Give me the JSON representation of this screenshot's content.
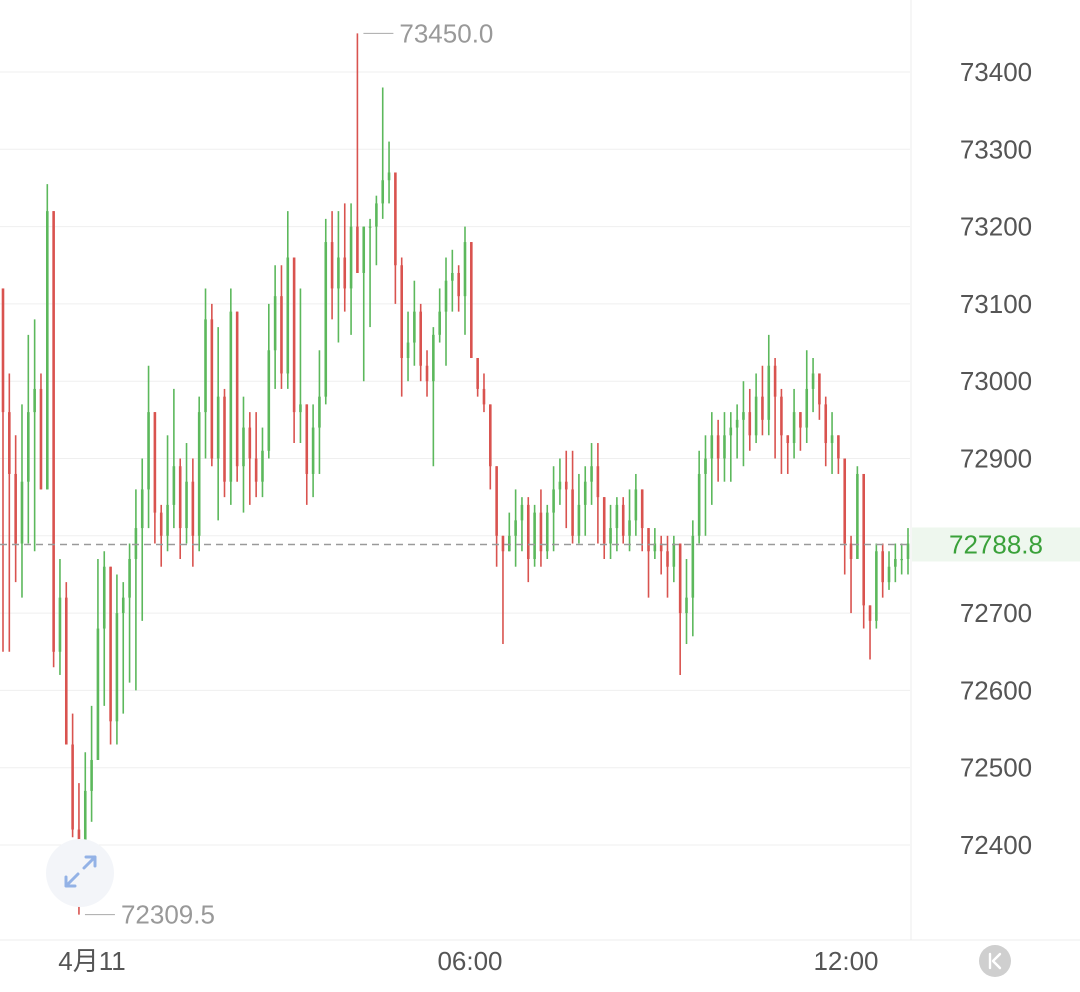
{
  "chart_data": {
    "type": "candlestick",
    "colors": {
      "up": "#5cb85c",
      "down": "#d9534f",
      "last_price": "#3aa13a"
    },
    "grid": true,
    "ylim": [
      72300,
      73480
    ],
    "y_ticks": [
      "73400",
      "73300",
      "73200",
      "73100",
      "73000",
      "72900",
      "72700",
      "72600",
      "72500",
      "72400"
    ],
    "x_ticks": [
      "4月11",
      "06:00",
      "12:00"
    ],
    "high_label": "73450.0",
    "low_label": "72309.5",
    "last_price": 72788.8,
    "last_price_label": "72788.8",
    "candles": [
      [
        73120,
        73120,
        72650,
        72960
      ],
      [
        72960,
        73010,
        72650,
        72880
      ],
      [
        72880,
        72930,
        72740,
        72790
      ],
      [
        72790,
        72970,
        72720,
        72870
      ],
      [
        72870,
        73060,
        72790,
        72960
      ],
      [
        72960,
        73080,
        72780,
        72990
      ],
      [
        72990,
        73010,
        72860,
        72860
      ],
      [
        72860,
        73255,
        72860,
        73220
      ],
      [
        73220,
        73220,
        72630,
        72650
      ],
      [
        72650,
        72770,
        72620,
        72720
      ],
      [
        72720,
        72740,
        72530,
        72530
      ],
      [
        72530,
        72570,
        72410,
        72420
      ],
      [
        72420,
        72480,
        72310,
        72340
      ],
      [
        72340,
        72520,
        72350,
        72470
      ],
      [
        72470,
        72580,
        72430,
        72510
      ],
      [
        72510,
        72770,
        72510,
        72680
      ],
      [
        72680,
        72780,
        72580,
        72760
      ],
      [
        72760,
        72760,
        72530,
        72560
      ],
      [
        72560,
        72750,
        72530,
        72700
      ],
      [
        72700,
        72740,
        72570,
        72720
      ],
      [
        72720,
        72790,
        72610,
        72770
      ],
      [
        72770,
        72860,
        72600,
        72810
      ],
      [
        72810,
        72900,
        72690,
        72860
      ],
      [
        72860,
        73020,
        72810,
        72960
      ],
      [
        72960,
        72960,
        72790,
        72830
      ],
      [
        72830,
        72840,
        72760,
        72800
      ],
      [
        72800,
        72930,
        72780,
        72840
      ],
      [
        72840,
        72990,
        72810,
        72890
      ],
      [
        72890,
        72900,
        72770,
        72810
      ],
      [
        72810,
        72920,
        72790,
        72870
      ],
      [
        72870,
        72900,
        72760,
        72800
      ],
      [
        72800,
        72980,
        72780,
        72960
      ],
      [
        72960,
        73120,
        72900,
        73080
      ],
      [
        73080,
        73100,
        72890,
        72900
      ],
      [
        72900,
        73070,
        72820,
        72980
      ],
      [
        72980,
        72990,
        72850,
        72870
      ],
      [
        72870,
        73120,
        72840,
        73090
      ],
      [
        73090,
        73090,
        72870,
        72890
      ],
      [
        72890,
        72980,
        72830,
        72940
      ],
      [
        72940,
        72960,
        72840,
        72900
      ],
      [
        72900,
        72960,
        72850,
        72870
      ],
      [
        72870,
        72940,
        72850,
        72910
      ],
      [
        72910,
        73100,
        72900,
        73040
      ],
      [
        73040,
        73150,
        72990,
        73110
      ],
      [
        73110,
        73150,
        72990,
        73010
      ],
      [
        73010,
        73220,
        72990,
        73160
      ],
      [
        73160,
        73160,
        72920,
        72960
      ],
      [
        72960,
        73120,
        72920,
        72970
      ],
      [
        72970,
        72970,
        72840,
        72880
      ],
      [
        72880,
        72970,
        72850,
        72940
      ],
      [
        72940,
        73040,
        72880,
        72980
      ],
      [
        72980,
        73210,
        72970,
        73180
      ],
      [
        73180,
        73220,
        73080,
        73120
      ],
      [
        73120,
        73220,
        73050,
        73160
      ],
      [
        73160,
        73230,
        73090,
        73120
      ],
      [
        73120,
        73230,
        73060,
        73200
      ],
      [
        73200,
        73450,
        73140,
        73140
      ],
      [
        73140,
        73200,
        73000,
        73200
      ],
      [
        73200,
        73210,
        73070,
        73200
      ],
      [
        73200,
        73240,
        73150,
        73230
      ],
      [
        73230,
        73380,
        73210,
        73260
      ],
      [
        73260,
        73310,
        73230,
        73270
      ],
      [
        73270,
        73270,
        73100,
        73150
      ],
      [
        73150,
        73160,
        72980,
        73030
      ],
      [
        73030,
        73090,
        73000,
        73050
      ],
      [
        73050,
        73130,
        73020,
        73090
      ],
      [
        73090,
        73100,
        73000,
        73020
      ],
      [
        73020,
        73040,
        72980,
        73000
      ],
      [
        73000,
        73070,
        72890,
        73060
      ],
      [
        73060,
        73120,
        73050,
        73090
      ],
      [
        73090,
        73160,
        73020,
        73130
      ],
      [
        73130,
        73170,
        73090,
        73140
      ],
      [
        73140,
        73150,
        73090,
        73110
      ],
      [
        73110,
        73200,
        73060,
        73180
      ],
      [
        73180,
        73180,
        73030,
        73030
      ],
      [
        73030,
        73030,
        72980,
        72990
      ],
      [
        72990,
        73010,
        72960,
        72970
      ],
      [
        72970,
        72970,
        72860,
        72890
      ],
      [
        72890,
        72890,
        72760,
        72800
      ],
      [
        72800,
        72800,
        72660,
        72780
      ],
      [
        72780,
        72830,
        72780,
        72800
      ],
      [
        72800,
        72860,
        72760,
        72820
      ],
      [
        72820,
        72850,
        72780,
        72840
      ],
      [
        72840,
        72850,
        72740,
        72770
      ],
      [
        72770,
        72840,
        72760,
        72830
      ],
      [
        72830,
        72860,
        72760,
        72780
      ],
      [
        72780,
        72840,
        72770,
        72830
      ],
      [
        72830,
        72890,
        72780,
        72860
      ],
      [
        72860,
        72900,
        72840,
        72870
      ],
      [
        72870,
        72910,
        72810,
        72860
      ],
      [
        72860,
        72910,
        72790,
        72800
      ],
      [
        72800,
        72880,
        72790,
        72840
      ],
      [
        72840,
        72890,
        72800,
        72870
      ],
      [
        72870,
        72920,
        72840,
        72890
      ],
      [
        72890,
        72920,
        72790,
        72850
      ],
      [
        72850,
        72850,
        72770,
        72790
      ],
      [
        72790,
        72840,
        72770,
        72810
      ],
      [
        72810,
        72850,
        72780,
        72840
      ],
      [
        72840,
        72850,
        72790,
        72800
      ],
      [
        72800,
        72860,
        72780,
        72820
      ],
      [
        72820,
        72880,
        72800,
        72860
      ],
      [
        72860,
        72860,
        72780,
        72810
      ],
      [
        72810,
        72810,
        72720,
        72780
      ],
      [
        72780,
        72810,
        72770,
        72790
      ],
      [
        72790,
        72800,
        72750,
        72780
      ],
      [
        72780,
        72800,
        72720,
        72760
      ],
      [
        72760,
        72800,
        72740,
        72790
      ],
      [
        72790,
        72790,
        72620,
        72700
      ],
      [
        72700,
        72770,
        72660,
        72720
      ],
      [
        72720,
        72820,
        72670,
        72800
      ],
      [
        72800,
        72910,
        72790,
        72880
      ],
      [
        72880,
        72930,
        72800,
        72900
      ],
      [
        72900,
        72960,
        72840,
        72930
      ],
      [
        72930,
        72950,
        72870,
        72900
      ],
      [
        72900,
        72960,
        72870,
        72930
      ],
      [
        72930,
        72960,
        72870,
        72940
      ],
      [
        72940,
        72970,
        72900,
        72950
      ],
      [
        72950,
        73000,
        72890,
        72960
      ],
      [
        72960,
        72990,
        72910,
        72930
      ],
      [
        72930,
        73010,
        72920,
        72980
      ],
      [
        72980,
        73020,
        72930,
        72950
      ],
      [
        72950,
        73060,
        72930,
        73020
      ],
      [
        73020,
        73030,
        72900,
        72980
      ],
      [
        72980,
        72990,
        72880,
        72930
      ],
      [
        72930,
        72930,
        72880,
        72920
      ],
      [
        72920,
        72990,
        72900,
        72960
      ],
      [
        72960,
        72960,
        72910,
        72940
      ],
      [
        72940,
        73040,
        72920,
        72990
      ],
      [
        72990,
        73030,
        72960,
        73010
      ],
      [
        73010,
        73010,
        72950,
        72970
      ],
      [
        72970,
        72980,
        72890,
        72920
      ],
      [
        72920,
        72960,
        72880,
        72930
      ],
      [
        72930,
        72930,
        72880,
        72900
      ],
      [
        72900,
        72900,
        72750,
        72790
      ],
      [
        72790,
        72800,
        72700,
        72770
      ],
      [
        72770,
        72890,
        72770,
        72880
      ],
      [
        72880,
        72880,
        72680,
        72710
      ],
      [
        72710,
        72710,
        72640,
        72690
      ],
      [
        72690,
        72790,
        72680,
        72780
      ],
      [
        72780,
        72790,
        72720,
        72740
      ],
      [
        72740,
        72780,
        72730,
        72760
      ],
      [
        72760,
        72790,
        72740,
        72770
      ],
      [
        72770,
        72790,
        72750,
        72770
      ],
      [
        72770,
        72810,
        72750,
        72790
      ]
    ]
  }
}
